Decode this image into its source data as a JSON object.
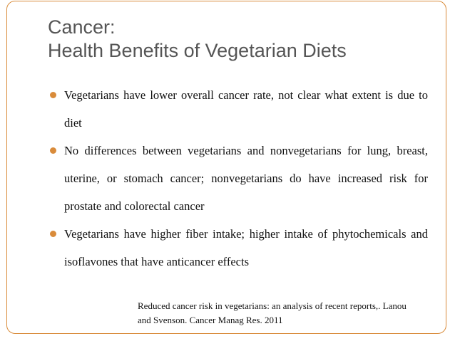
{
  "slide": {
    "title_line1": "Cancer:",
    "title_line2": "Health Benefits of Vegetarian Diets",
    "bullets": [
      {
        "text": "Vegetarians have lower overall cancer rate, not clear what extent is due to diet"
      },
      {
        "text": "No differences between vegetarians and nonvegetarians for lung, breast, uterine, or stomach cancer; nonvegetarians do have increased risk for prostate and colorectal cancer"
      },
      {
        "text": "Vegetarians have higher fiber intake; higher intake of phytochemicals and isoflavones that have anticancer effects"
      }
    ],
    "citation": "Reduced cancer risk in vegetarians: an analysis of recent reports,. Lanou and Svenson. Cancer Manag Res. 2011"
  },
  "colors": {
    "accent": "#d98b3a",
    "title": "#555555",
    "body_text": "#111111"
  }
}
